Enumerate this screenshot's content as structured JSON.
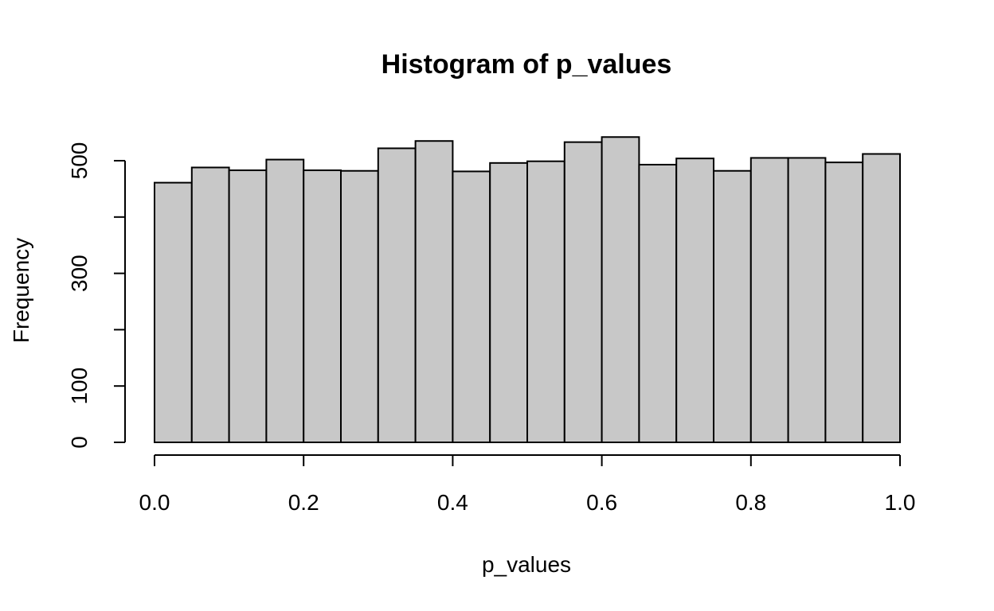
{
  "chart_data": {
    "type": "bar",
    "title": "Histogram of p_values",
    "xlabel": "p_values",
    "ylabel": "Frequency",
    "bin_width": 0.05,
    "x": [
      0.0,
      0.05,
      0.1,
      0.15,
      0.2,
      0.25,
      0.3,
      0.35,
      0.4,
      0.45,
      0.5,
      0.55,
      0.6,
      0.65,
      0.7,
      0.75,
      0.8,
      0.85,
      0.9,
      0.95
    ],
    "values": [
      461,
      488,
      483,
      502,
      483,
      482,
      522,
      535,
      481,
      496,
      499,
      533,
      542,
      493,
      504,
      482,
      505,
      505,
      497,
      512
    ],
    "xlim": [
      0,
      1
    ],
    "ylim": [
      0,
      540
    ],
    "x_ticks": [
      {
        "value": 0.0,
        "label": "0.0"
      },
      {
        "value": 0.2,
        "label": "0.2"
      },
      {
        "value": 0.4,
        "label": "0.4"
      },
      {
        "value": 0.6,
        "label": "0.6"
      },
      {
        "value": 0.8,
        "label": "0.8"
      },
      {
        "value": 1.0,
        "label": "1.0"
      }
    ],
    "y_ticks": [
      0,
      100,
      200,
      300,
      400,
      500
    ],
    "y_tick_labels": [
      {
        "value": 0,
        "label": "0"
      },
      {
        "value": 100,
        "label": "100"
      },
      {
        "value": 300,
        "label": "300"
      },
      {
        "value": 500,
        "label": "500"
      }
    ],
    "bar_fill": "#c8c8c8",
    "grid": false,
    "legend": "none"
  }
}
